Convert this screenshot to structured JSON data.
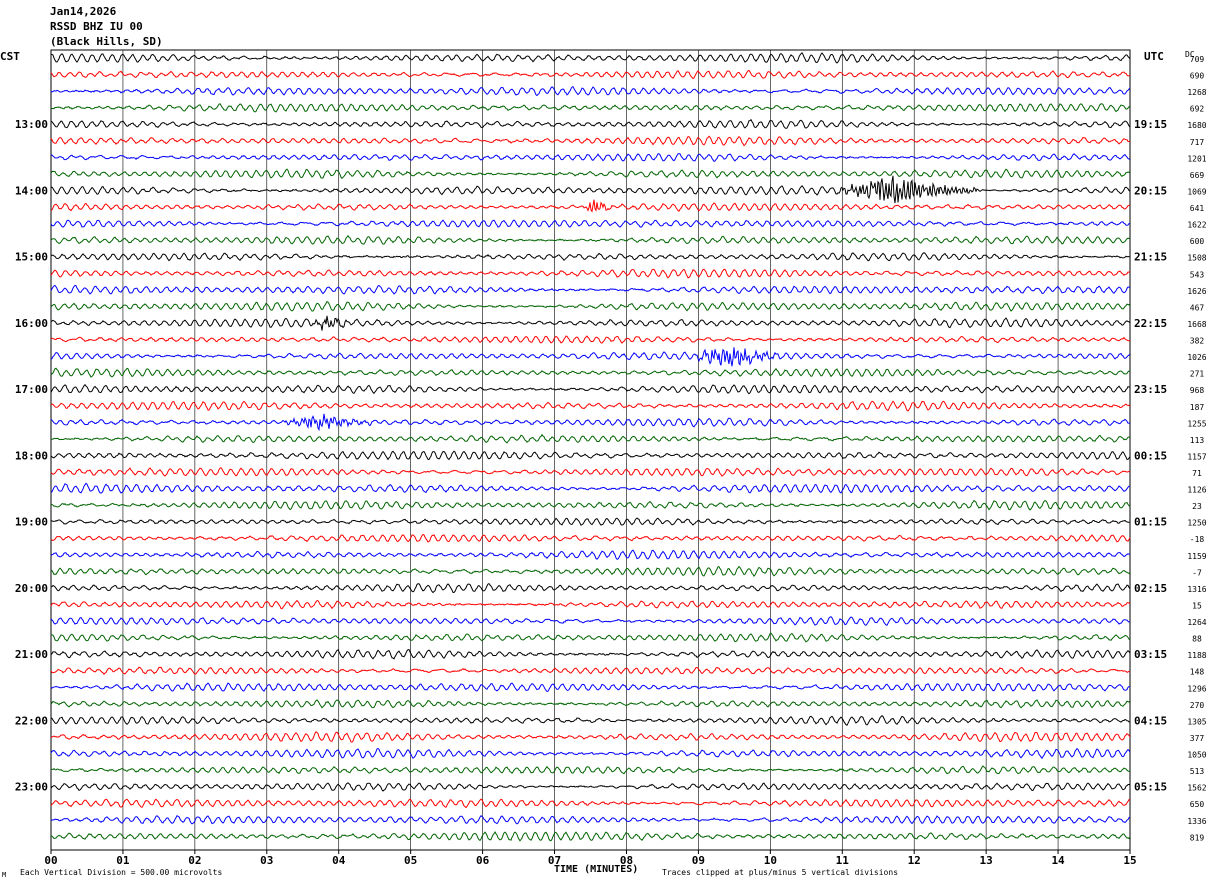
{
  "header": {
    "date": "Jan14,2026",
    "station": "RSSD BHZ IU 00",
    "location": "(Black Hills, SD)"
  },
  "left_tz": "CST",
  "right_tz": "UTC",
  "dc_label": "DC",
  "corner_mark": "M",
  "footer": {
    "vertical_division": "Each Vertical Division =  500.00 microvolts",
    "xlabel": "TIME (MINUTES)",
    "clip_note": "Traces clipped at plus/minus 5 vertical divisions"
  },
  "colors": {
    "trace_cycle": [
      "#000000",
      "#ff0000",
      "#0000ff",
      "#006400"
    ],
    "grid": "#000000"
  },
  "chart_data": {
    "type": "line",
    "title": "RSSD BHZ IU 00",
    "xlabel": "TIME (MINUTES)",
    "xlim": [
      0,
      15
    ],
    "x_ticks": [
      "00",
      "01",
      "02",
      "03",
      "04",
      "05",
      "06",
      "07",
      "08",
      "09",
      "10",
      "11",
      "12",
      "13",
      "14",
      "15"
    ],
    "rows_per_hour": 4,
    "minutes_per_row": 15,
    "row_count": 48,
    "left_hour_labels": [
      "13:00",
      "14:00",
      "15:00",
      "16:00",
      "17:00",
      "18:00",
      "19:00",
      "20:00",
      "21:00",
      "22:00",
      "23:00"
    ],
    "right_hour_labels": [
      "19:15",
      "20:15",
      "21:15",
      "22:15",
      "23:15",
      "00:15",
      "01:15",
      "02:15",
      "03:15",
      "04:15",
      "05:15"
    ],
    "dc_offsets": [
      "709",
      "690",
      "1268",
      "692",
      "1680",
      "717",
      "1201",
      "669",
      "1069",
      "641",
      "1622",
      "600",
      "1508",
      "543",
      "1626",
      "467",
      "1668",
      "382",
      "1026",
      "271",
      "968",
      "187",
      "1255",
      "113",
      "1157",
      "71",
      "1126",
      "23",
      "1250",
      "-18",
      "1159",
      "-7",
      "1316",
      "15",
      "1264",
      "88",
      "1188",
      "148",
      "1296",
      "270",
      "1305",
      "377",
      "1050",
      "513",
      "1562",
      "650",
      "1336",
      "819"
    ],
    "events": [
      {
        "row": 8,
        "start_min": 10.9,
        "end_min": 12.9,
        "amplitude": 14
      },
      {
        "row": 9,
        "start_min": 7.4,
        "end_min": 7.8,
        "amplitude": 8
      },
      {
        "row": 16,
        "start_min": 3.6,
        "end_min": 4.2,
        "amplitude": 6
      },
      {
        "row": 18,
        "start_min": 8.9,
        "end_min": 10.2,
        "amplitude": 10
      },
      {
        "row": 22,
        "start_min": 3.2,
        "end_min": 4.5,
        "amplitude": 7
      }
    ],
    "trace_amplitude_divisions": 5,
    "vertical_division_microvolts": 500.0
  }
}
